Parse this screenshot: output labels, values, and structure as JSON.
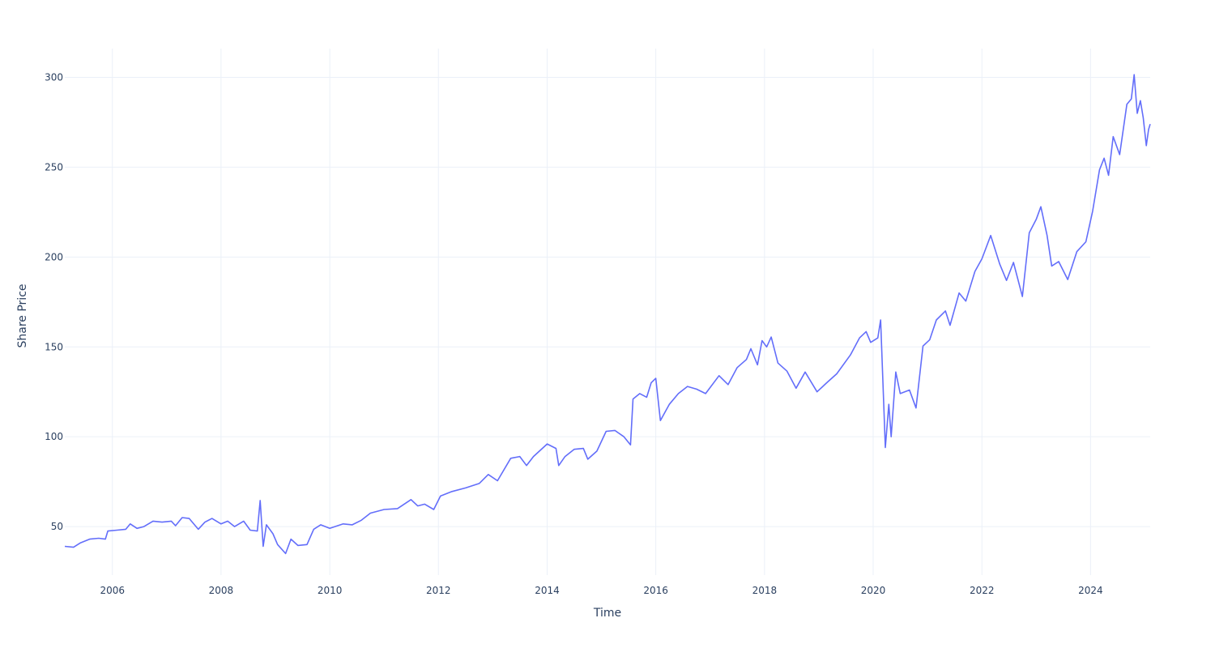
{
  "chart_data": {
    "type": "line",
    "title": "",
    "xlabel": "Time",
    "ylabel": "Share Price",
    "x_type": "date",
    "xlim": [
      "2005-02-15",
      "2025-02-05"
    ],
    "ylim": [
      23,
      316
    ],
    "x_ticks": [
      "2006",
      "2008",
      "2010",
      "2012",
      "2014",
      "2016",
      "2018",
      "2020",
      "2022",
      "2024"
    ],
    "y_ticks": [
      50,
      100,
      150,
      200,
      250,
      300
    ],
    "grid": true,
    "legend": "none",
    "series": [
      {
        "color": "#636efa",
        "points": [
          [
            "2005-02-15",
            39
          ],
          [
            "2005-04-15",
            38.5
          ],
          [
            "2005-06-01",
            41
          ],
          [
            "2005-08-01",
            43
          ],
          [
            "2005-10-01",
            43.5
          ],
          [
            "2005-11-15",
            43
          ],
          [
            "2005-12-01",
            47.5
          ],
          [
            "2006-02-01",
            48
          ],
          [
            "2006-04-01",
            48.5
          ],
          [
            "2006-05-01",
            51.5
          ],
          [
            "2006-06-15",
            49
          ],
          [
            "2006-08-01",
            50
          ],
          [
            "2006-10-01",
            53
          ],
          [
            "2006-12-01",
            52.5
          ],
          [
            "2007-02-01",
            53
          ],
          [
            "2007-03-01",
            50.5
          ],
          [
            "2007-04-15",
            55
          ],
          [
            "2007-06-01",
            54.5
          ],
          [
            "2007-08-01",
            48.5
          ],
          [
            "2007-09-15",
            52.5
          ],
          [
            "2007-11-01",
            54.5
          ],
          [
            "2008-01-01",
            51.5
          ],
          [
            "2008-02-15",
            53
          ],
          [
            "2008-04-01",
            50
          ],
          [
            "2008-06-01",
            53
          ],
          [
            "2008-07-15",
            48
          ],
          [
            "2008-09-01",
            47.5
          ],
          [
            "2008-09-20",
            64.5
          ],
          [
            "2008-10-10",
            39
          ],
          [
            "2008-11-01",
            51
          ],
          [
            "2008-12-15",
            46
          ],
          [
            "2009-01-15",
            40
          ],
          [
            "2009-03-10",
            35
          ],
          [
            "2009-04-15",
            43
          ],
          [
            "2009-06-01",
            39.5
          ],
          [
            "2009-08-01",
            40
          ],
          [
            "2009-09-15",
            48.5
          ],
          [
            "2009-11-01",
            51
          ],
          [
            "2010-01-01",
            49
          ],
          [
            "2010-04-01",
            51.5
          ],
          [
            "2010-06-01",
            51
          ],
          [
            "2010-08-01",
            53.5
          ],
          [
            "2010-10-01",
            57.5
          ],
          [
            "2011-01-01",
            59.5
          ],
          [
            "2011-04-01",
            60
          ],
          [
            "2011-07-01",
            65
          ],
          [
            "2011-08-15",
            61.5
          ],
          [
            "2011-10-01",
            62.5
          ],
          [
            "2011-12-01",
            59.5
          ],
          [
            "2012-01-15",
            67
          ],
          [
            "2012-04-01",
            69.5
          ],
          [
            "2012-07-01",
            71.5
          ],
          [
            "2012-10-01",
            74
          ],
          [
            "2012-12-01",
            79
          ],
          [
            "2013-02-01",
            75.5
          ],
          [
            "2013-05-01",
            88
          ],
          [
            "2013-07-01",
            89
          ],
          [
            "2013-08-15",
            84
          ],
          [
            "2013-10-01",
            89
          ],
          [
            "2014-01-01",
            96
          ],
          [
            "2014-03-01",
            93.5
          ],
          [
            "2014-03-20",
            84
          ],
          [
            "2014-05-01",
            89
          ],
          [
            "2014-07-01",
            93
          ],
          [
            "2014-09-01",
            93.5
          ],
          [
            "2014-10-01",
            87.5
          ],
          [
            "2014-12-01",
            92
          ],
          [
            "2015-02-01",
            103
          ],
          [
            "2015-04-01",
            103.5
          ],
          [
            "2015-06-01",
            100
          ],
          [
            "2015-07-15",
            95.5
          ],
          [
            "2015-08-01",
            121
          ],
          [
            "2015-09-15",
            124
          ],
          [
            "2015-11-01",
            122
          ],
          [
            "2015-12-01",
            130
          ],
          [
            "2016-01-01",
            132.5
          ],
          [
            "2016-02-01",
            109
          ],
          [
            "2016-04-01",
            118
          ],
          [
            "2016-06-01",
            124
          ],
          [
            "2016-08-01",
            128
          ],
          [
            "2016-10-01",
            126.5
          ],
          [
            "2016-12-01",
            124
          ],
          [
            "2017-03-01",
            134
          ],
          [
            "2017-05-01",
            129
          ],
          [
            "2017-07-01",
            138.5
          ],
          [
            "2017-09-01",
            143
          ],
          [
            "2017-10-01",
            149
          ],
          [
            "2017-11-15",
            140
          ],
          [
            "2017-12-15",
            153.5
          ],
          [
            "2018-01-15",
            150
          ],
          [
            "2018-02-15",
            155.5
          ],
          [
            "2018-04-01",
            141
          ],
          [
            "2018-06-01",
            136.5
          ],
          [
            "2018-08-01",
            127
          ],
          [
            "2018-10-01",
            136
          ],
          [
            "2018-12-20",
            125
          ],
          [
            "2019-03-01",
            130.5
          ],
          [
            "2019-05-01",
            135
          ],
          [
            "2019-08-01",
            145.5
          ],
          [
            "2019-10-01",
            155
          ],
          [
            "2019-11-15",
            158.5
          ],
          [
            "2019-12-15",
            152.5
          ],
          [
            "2020-02-01",
            155
          ],
          [
            "2020-02-20",
            165
          ],
          [
            "2020-03-23",
            94
          ],
          [
            "2020-04-15",
            118
          ],
          [
            "2020-05-01",
            100
          ],
          [
            "2020-06-01",
            136
          ],
          [
            "2020-07-01",
            124
          ],
          [
            "2020-09-01",
            126
          ],
          [
            "2020-10-15",
            116
          ],
          [
            "2020-12-01",
            150.5
          ],
          [
            "2021-01-15",
            154
          ],
          [
            "2021-03-01",
            165
          ],
          [
            "2021-05-01",
            170
          ],
          [
            "2021-06-01",
            162
          ],
          [
            "2021-08-01",
            180
          ],
          [
            "2021-09-15",
            175.5
          ],
          [
            "2021-11-15",
            192
          ],
          [
            "2022-01-01",
            199
          ],
          [
            "2022-03-01",
            212
          ],
          [
            "2022-05-01",
            196
          ],
          [
            "2022-06-15",
            187
          ],
          [
            "2022-08-01",
            197
          ],
          [
            "2022-09-30",
            178
          ],
          [
            "2022-11-15",
            213.5
          ],
          [
            "2023-01-01",
            221
          ],
          [
            "2023-02-01",
            228
          ],
          [
            "2023-03-15",
            212
          ],
          [
            "2023-04-15",
            195
          ],
          [
            "2023-06-01",
            197.5
          ],
          [
            "2023-08-01",
            187.5
          ],
          [
            "2023-10-01",
            203
          ],
          [
            "2023-12-01",
            208.5
          ],
          [
            "2024-01-15",
            225.5
          ],
          [
            "2024-03-01",
            248.5
          ],
          [
            "2024-04-01",
            255
          ],
          [
            "2024-05-01",
            245.5
          ],
          [
            "2024-06-01",
            267
          ],
          [
            "2024-07-15",
            257
          ],
          [
            "2024-09-01",
            285
          ],
          [
            "2024-10-01",
            288
          ],
          [
            "2024-10-20",
            301.5
          ],
          [
            "2024-11-10",
            280
          ],
          [
            "2024-12-01",
            287
          ],
          [
            "2024-12-20",
            277.5
          ],
          [
            "2025-01-10",
            262
          ],
          [
            "2025-01-25",
            271
          ],
          [
            "2025-02-05",
            274
          ]
        ]
      }
    ]
  }
}
